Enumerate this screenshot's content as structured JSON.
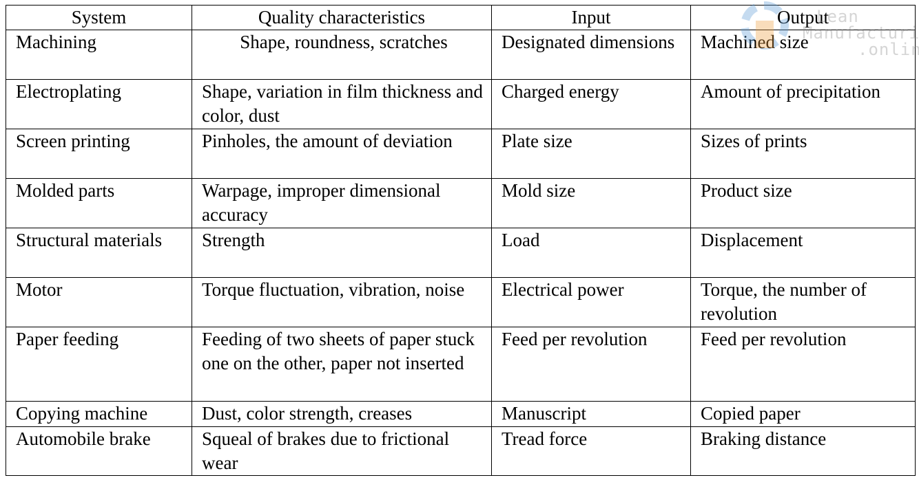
{
  "headers": [
    "System",
    "Quality characteristics",
    "Input",
    "Output"
  ],
  "rows": [
    [
      "Machining",
      "Shape, roundness, scratches",
      "Designated dimensions",
      "Machined size"
    ],
    [
      "Electroplating",
      "Shape, variation in film thickness and color, dust",
      "Charged energy",
      "Amount of precipitation"
    ],
    [
      "Screen printing",
      "Pinholes, the amount of deviation",
      "Plate size",
      "Sizes of prints"
    ],
    [
      "Molded parts",
      "Warpage, improper dimensional accuracy",
      "Mold size",
      "Product size"
    ],
    [
      "Structural materials",
      "Strength",
      "Load",
      "Displacement"
    ],
    [
      "Motor",
      "Torque fluctuation, vibration, noise",
      "Electrical power",
      "Torque, the number of revolution"
    ],
    [
      "Paper feeding",
      "Feeding of two sheets of paper stuck one on the other, paper not inserted",
      "Feed per revolution",
      "Feed per revolution"
    ],
    [
      "Copying machine",
      "Dust, color strength, creases",
      "Manuscript",
      "Copied paper"
    ],
    [
      "Automobile brake",
      "Squeal of brakes due to frictional wear",
      "Tread force",
      "Braking distance"
    ]
  ],
  "watermark": {
    "line1": "Lean",
    "line2": "Manufacturing",
    "line3": ".online"
  }
}
